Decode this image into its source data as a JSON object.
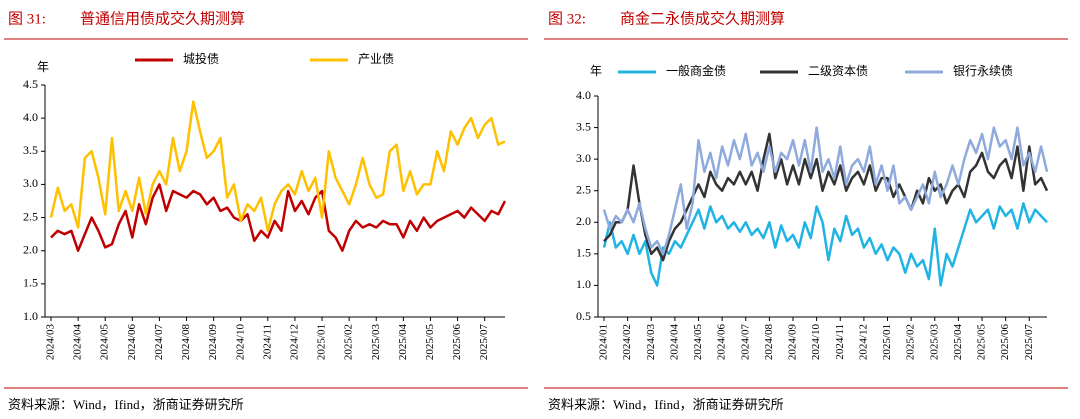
{
  "chart_data": [
    {
      "type": "line",
      "label": "图 31:",
      "title": "普通信用债成交久期测算",
      "y_unit": "年",
      "source": "资料来源：Wind，Ifind，浙商证券研究所",
      "categories": [
        "2024/03",
        null,
        null,
        null,
        "2024/04",
        null,
        null,
        null,
        "2024/05",
        null,
        null,
        null,
        "2024/06",
        null,
        null,
        null,
        "2024/07",
        null,
        null,
        null,
        "2024/08",
        null,
        null,
        null,
        "2024/09",
        null,
        null,
        null,
        "2024/10",
        null,
        null,
        null,
        "2024/11",
        null,
        null,
        null,
        "2024/12",
        null,
        null,
        null,
        "2025/01",
        null,
        null,
        null,
        "2025/02",
        null,
        null,
        null,
        "2025/03",
        null,
        null,
        null,
        "2025/04",
        null,
        null,
        null,
        "2025/05",
        null,
        null,
        null,
        "2025/06",
        null,
        null,
        null,
        "2025/07",
        null,
        null,
        null
      ],
      "series": [
        {
          "name": "城投债",
          "color": "#c00000",
          "values": [
            2.2,
            2.3,
            2.25,
            2.3,
            2.0,
            2.25,
            2.5,
            2.3,
            2.05,
            2.1,
            2.4,
            2.6,
            2.2,
            2.7,
            2.4,
            2.8,
            3.0,
            2.6,
            2.9,
            2.85,
            2.8,
            2.9,
            2.85,
            2.7,
            2.8,
            2.6,
            2.65,
            2.5,
            2.45,
            2.55,
            2.15,
            2.3,
            2.2,
            2.45,
            2.3,
            2.9,
            2.6,
            2.75,
            2.55,
            2.8,
            2.9,
            2.3,
            2.2,
            2.0,
            2.3,
            2.45,
            2.35,
            2.4,
            2.35,
            2.45,
            2.4,
            2.4,
            2.2,
            2.45,
            2.3,
            2.5,
            2.35,
            2.45,
            2.5,
            2.55,
            2.6,
            2.5,
            2.65,
            2.55,
            2.45,
            2.6,
            2.55,
            2.75
          ]
        },
        {
          "name": "产业债",
          "color": "#ffc000",
          "values": [
            2.5,
            2.95,
            2.6,
            2.7,
            2.35,
            3.4,
            3.5,
            3.1,
            2.55,
            3.7,
            2.6,
            2.9,
            2.6,
            3.1,
            2.55,
            3.0,
            3.2,
            3.0,
            3.7,
            3.2,
            3.5,
            4.25,
            3.8,
            3.4,
            3.5,
            3.7,
            2.8,
            3.0,
            2.45,
            2.7,
            2.6,
            2.8,
            2.3,
            2.7,
            2.9,
            3.0,
            2.85,
            3.2,
            2.9,
            3.1,
            2.5,
            3.5,
            3.1,
            2.9,
            2.7,
            3.0,
            3.4,
            3.0,
            2.8,
            2.85,
            3.5,
            3.6,
            2.9,
            3.2,
            2.85,
            3.0,
            3.0,
            3.5,
            3.2,
            3.8,
            3.6,
            3.85,
            4.0,
            3.7,
            3.9,
            4.0,
            3.6,
            3.65
          ]
        }
      ],
      "ylim": [
        1.0,
        4.5
      ],
      "yticks": [
        {
          "value": 1,
          "label": "1.0"
        },
        1.5,
        {
          "value": 2,
          "label": "2.0"
        },
        2.5,
        {
          "value": 3,
          "label": "3.0"
        },
        3.5,
        {
          "value": 4,
          "label": "4.0"
        },
        4.5
      ]
    },
    {
      "type": "line",
      "label": "图 32:",
      "title": "商金二永债成交久期测算",
      "y_unit": "年",
      "source": "资料来源：Wind，Ifind，浙商证券研究所",
      "categories": [
        "2024/01",
        null,
        null,
        null,
        "2024/02",
        null,
        null,
        null,
        "2024/03",
        null,
        null,
        null,
        "2024/04",
        null,
        null,
        null,
        "2024/05",
        null,
        null,
        null,
        "2024/06",
        null,
        null,
        null,
        "2024/07",
        null,
        null,
        null,
        "2024/08",
        null,
        null,
        null,
        "2024/09",
        null,
        null,
        null,
        "2024/10",
        null,
        null,
        null,
        "2024/11",
        null,
        null,
        null,
        "2024/12",
        null,
        null,
        null,
        "2025/01",
        null,
        null,
        null,
        "2025/02",
        null,
        null,
        null,
        "2025/03",
        null,
        null,
        null,
        "2025/04",
        null,
        null,
        null,
        "2025/05",
        null,
        null,
        null,
        "2025/06",
        null,
        null,
        null,
        "2025/07",
        null,
        null,
        null
      ],
      "series": [
        {
          "name": "一般商金债",
          "color": "#1fb4e4",
          "values": [
            1.6,
            2.0,
            1.6,
            1.7,
            1.5,
            1.8,
            1.5,
            1.7,
            1.2,
            1.0,
            1.6,
            1.5,
            1.7,
            1.6,
            1.8,
            2.0,
            2.2,
            1.9,
            2.25,
            2.0,
            2.1,
            1.9,
            2.0,
            1.85,
            2.0,
            1.8,
            1.9,
            1.75,
            2.0,
            1.6,
            1.95,
            1.7,
            1.8,
            1.6,
            2.0,
            1.75,
            2.25,
            2.0,
            1.4,
            1.9,
            1.7,
            2.1,
            1.8,
            1.9,
            1.6,
            1.75,
            1.5,
            1.65,
            1.4,
            1.6,
            1.5,
            1.2,
            1.5,
            1.3,
            1.4,
            1.1,
            1.9,
            1.0,
            1.5,
            1.3,
            1.6,
            1.9,
            2.2,
            2.0,
            2.1,
            2.2,
            1.9,
            2.25,
            2.1,
            2.2,
            1.9,
            2.3,
            2.0,
            2.2,
            2.1,
            2.0
          ]
        },
        {
          "name": "二级资本债",
          "color": "#333333",
          "values": [
            1.7,
            1.8,
            2.0,
            2.0,
            2.2,
            2.9,
            2.3,
            1.8,
            1.5,
            1.6,
            1.4,
            1.7,
            1.9,
            2.0,
            2.2,
            2.4,
            2.6,
            2.4,
            2.8,
            2.6,
            2.5,
            2.7,
            2.6,
            2.8,
            2.6,
            2.8,
            2.5,
            3.0,
            3.4,
            2.7,
            3.0,
            2.6,
            2.9,
            2.6,
            3.0,
            2.7,
            3.0,
            2.5,
            2.8,
            2.6,
            2.9,
            2.5,
            2.7,
            2.8,
            2.6,
            2.9,
            2.5,
            2.7,
            2.7,
            2.4,
            2.6,
            2.4,
            2.2,
            2.5,
            2.3,
            2.7,
            2.5,
            2.6,
            2.3,
            2.5,
            2.6,
            2.4,
            2.8,
            2.9,
            3.1,
            2.8,
            2.7,
            2.9,
            3.0,
            2.7,
            3.2,
            2.5,
            3.2,
            2.6,
            2.7,
            2.5
          ]
        },
        {
          "name": "银行永续债",
          "color": "#8faadc",
          "values": [
            2.2,
            1.9,
            2.1,
            2.0,
            2.2,
            2.0,
            2.3,
            1.9,
            1.6,
            1.7,
            1.5,
            1.8,
            2.2,
            2.6,
            1.9,
            2.3,
            3.3,
            2.8,
            3.1,
            2.7,
            3.2,
            2.9,
            3.3,
            3.0,
            3.4,
            2.9,
            3.1,
            2.8,
            3.2,
            2.8,
            3.1,
            3.0,
            3.3,
            2.9,
            3.3,
            2.8,
            3.5,
            2.8,
            3.0,
            2.7,
            3.2,
            2.6,
            2.9,
            3.0,
            2.8,
            3.2,
            2.6,
            2.9,
            2.5,
            2.9,
            2.3,
            2.4,
            2.2,
            2.4,
            2.6,
            2.3,
            2.8,
            2.4,
            2.6,
            2.9,
            2.6,
            3.0,
            3.3,
            3.1,
            3.4,
            3.0,
            3.5,
            3.2,
            3.3,
            3.0,
            3.5,
            2.9,
            3.1,
            2.8,
            3.2,
            2.8
          ]
        }
      ],
      "ylim": [
        0.5,
        4.0
      ],
      "yticks": [
        0.5,
        {
          "value": 1,
          "label": "1.0"
        },
        1.5,
        {
          "value": 2,
          "label": "2.0"
        },
        2.5,
        {
          "value": 3,
          "label": "3.0"
        },
        3.5,
        {
          "value": 4,
          "label": "4.0"
        }
      ]
    }
  ]
}
